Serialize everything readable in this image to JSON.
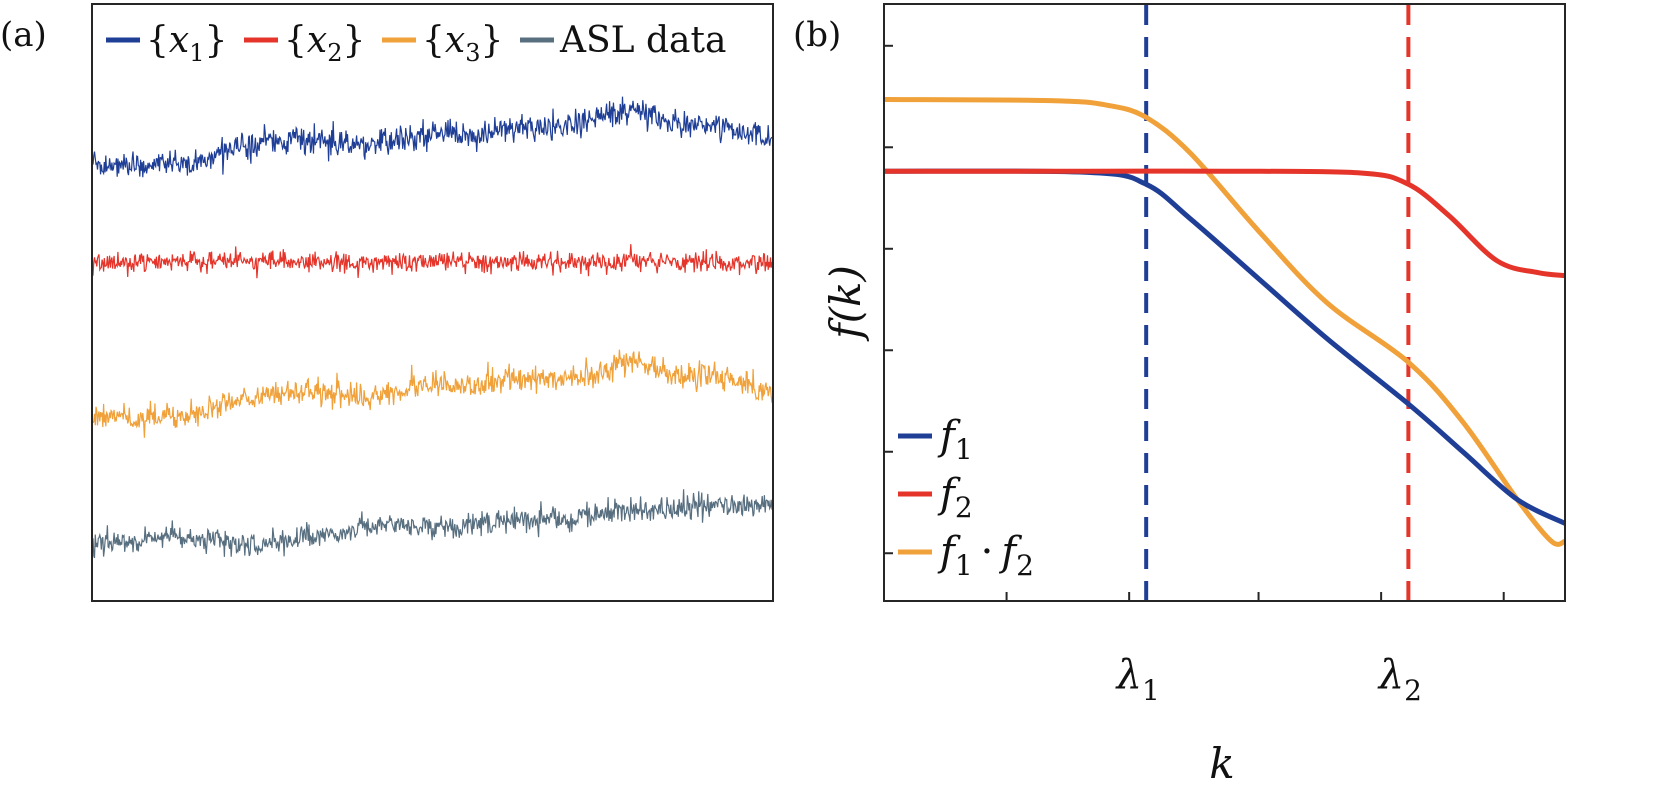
{
  "chart_data": [
    {
      "panel_label": "(a)",
      "type": "line",
      "title": "",
      "xlabel": "",
      "ylabel": "",
      "grid": false,
      "legend_position": "top",
      "series": [
        {
          "name": "{x_1}",
          "label_base": "x",
          "label_sub": "1",
          "color": "#1f3e96",
          "kind": "fbm_trend",
          "trend_seed": 11,
          "noise_seed": 5
        },
        {
          "name": "{x_2}",
          "label_base": "x",
          "label_sub": "2",
          "color": "#e5352b",
          "kind": "white_noise",
          "noise_seed": 7
        },
        {
          "name": "{x_3}",
          "label_base": "x",
          "label_sub": "3",
          "color": "#f0a13a",
          "kind": "fbm_trend",
          "trend_seed": 11,
          "noise_seed": 9
        },
        {
          "name": "ASL data",
          "color": "#586f80",
          "kind": "fbm_trend",
          "trend_seed": 23,
          "noise_seed": 13
        }
      ]
    },
    {
      "panel_label": "(b)",
      "type": "line",
      "title": "",
      "xlabel": "k",
      "ylabel": "f(k)",
      "grid": false,
      "legend_position": "bottom-left",
      "xlim": [
        0,
        1
      ],
      "ylim": [
        0,
        1
      ],
      "x_ticks": [
        0.18,
        0.36,
        0.55,
        0.73,
        0.91
      ],
      "y_ticks": [
        0.08,
        0.25,
        0.42,
        0.59,
        0.76,
        0.93
      ],
      "x_tick_labels": [
        {
          "value": 0.385,
          "base": "λ",
          "sub": "1"
        },
        {
          "value": 0.77,
          "base": "λ",
          "sub": "2"
        }
      ],
      "vlines": [
        {
          "name": "lambda_1",
          "x": 0.385,
          "color": "#1f3e96",
          "style": "dashed"
        },
        {
          "name": "lambda_2",
          "x": 0.77,
          "color": "#e5352b",
          "style": "dashed"
        }
      ],
      "series": [
        {
          "name": "f_1",
          "label_parts": [
            "f",
            "1"
          ],
          "color": "#1f3e96",
          "x": [
            0,
            0.3,
            0.385,
            0.45,
            0.55,
            0.65,
            0.77,
            0.85,
            0.93,
            1.0
          ],
          "y": [
            0.72,
            0.718,
            0.698,
            0.64,
            0.54,
            0.44,
            0.33,
            0.25,
            0.17,
            0.13
          ]
        },
        {
          "name": "f_2",
          "label_parts": [
            "f",
            "2"
          ],
          "color": "#e5352b",
          "x": [
            0,
            0.3,
            0.5,
            0.7,
            0.77,
            0.83,
            0.9,
            0.96,
            1.0
          ],
          "y": [
            0.72,
            0.72,
            0.72,
            0.717,
            0.698,
            0.645,
            0.57,
            0.55,
            0.545
          ]
        },
        {
          "name": "f_1 · f_2",
          "label_parts": [
            "f",
            "1",
            "·",
            "f",
            "2"
          ],
          "color": "#f0a13a",
          "x": [
            0,
            0.25,
            0.33,
            0.385,
            0.45,
            0.55,
            0.65,
            0.77,
            0.85,
            0.93,
            0.98,
            1.0
          ],
          "y": [
            0.84,
            0.838,
            0.83,
            0.81,
            0.75,
            0.62,
            0.5,
            0.4,
            0.3,
            0.17,
            0.1,
            0.1
          ]
        }
      ]
    }
  ]
}
